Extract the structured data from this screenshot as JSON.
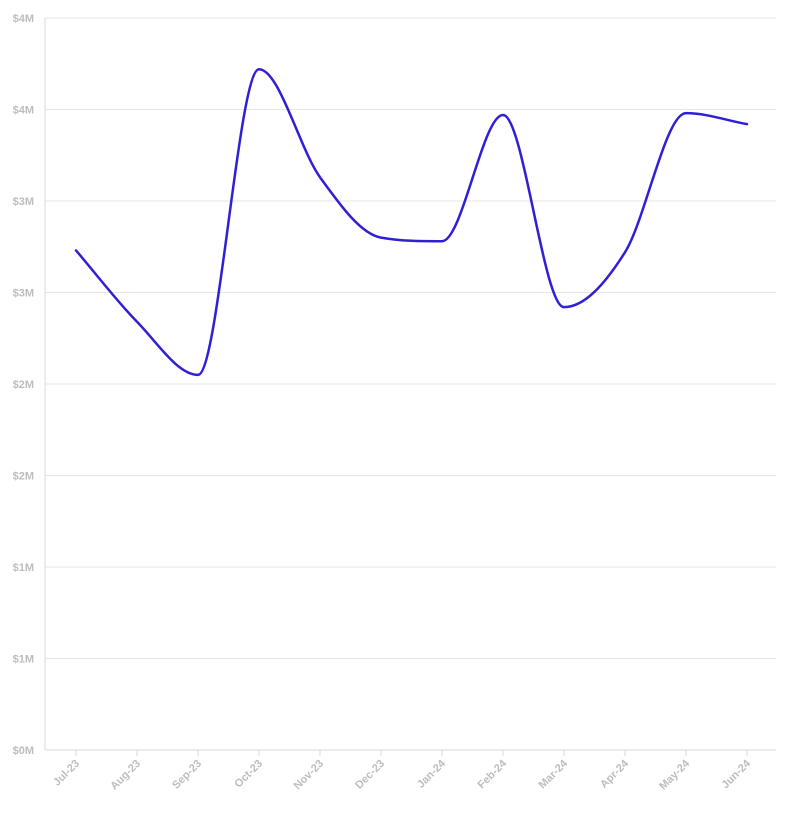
{
  "chart_data": {
    "type": "line",
    "categories": [
      "Jul-23",
      "Aug-23",
      "Sep-23",
      "Oct-23",
      "Nov-23",
      "Dec-23",
      "Jan-24",
      "Feb-24",
      "Mar-24",
      "Apr-24",
      "May-24",
      "Jun-24"
    ],
    "series": [
      {
        "values": [
          2.73,
          2.34,
          2.05,
          3.72,
          3.13,
          2.8,
          2.78,
          3.47,
          2.42,
          2.72,
          3.48,
          3.42
        ],
        "color": "#2F1FD6"
      }
    ],
    "y_ticks": [
      {
        "value": 0,
        "label": "$0M"
      },
      {
        "value": 0.5,
        "label": "$1M"
      },
      {
        "value": 1.0,
        "label": "$1M"
      },
      {
        "value": 1.5,
        "label": "$2M"
      },
      {
        "value": 2.0,
        "label": "$2M"
      },
      {
        "value": 2.5,
        "label": "$3M"
      },
      {
        "value": 3.0,
        "label": "$3M"
      },
      {
        "value": 3.5,
        "label": "$4M"
      },
      {
        "value": 4.0,
        "label": "$4M"
      }
    ],
    "ylim": [
      0,
      4
    ],
    "grid": true,
    "title": "",
    "xlabel": "",
    "ylabel": "",
    "colors": {
      "grid": "#e6e6e6",
      "axis": "#d9d9d9",
      "tick_text": "#bdbdbd"
    }
  }
}
